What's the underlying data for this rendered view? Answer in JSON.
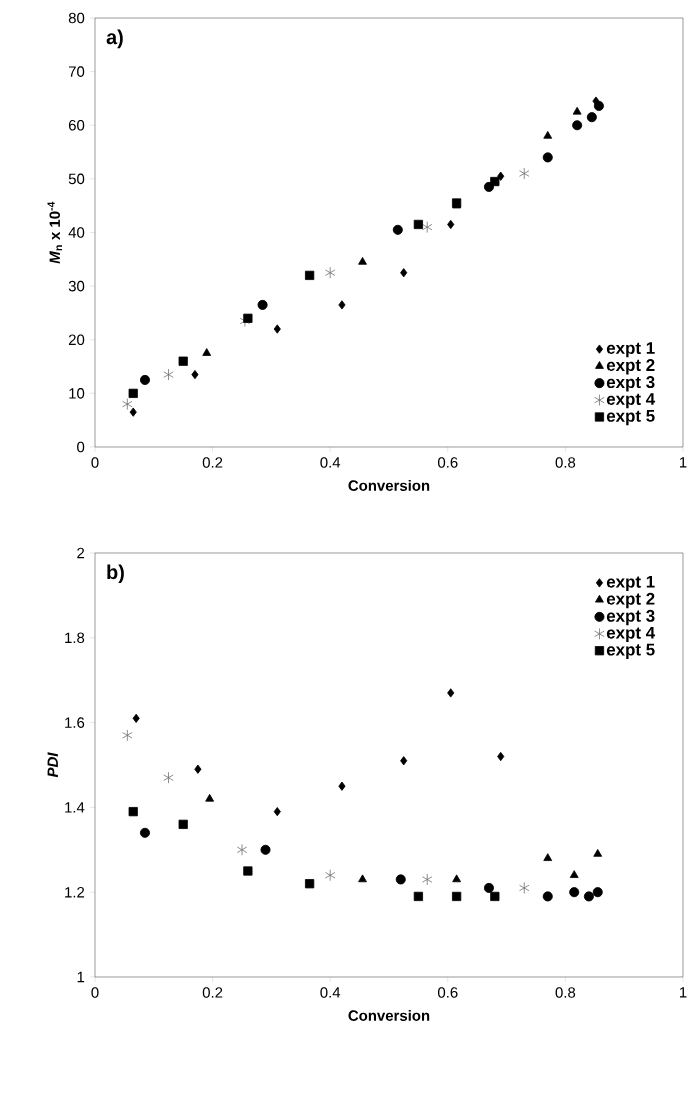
{
  "chart_data": [
    {
      "type": "scatter",
      "xlabel": "Conversion",
      "ylabel": "*M*$_{n}$ x 10$^{-4}$",
      "annotations": [
        "a)"
      ],
      "xlim": [
        0,
        1
      ],
      "ylim": [
        0,
        80
      ],
      "xticks": [
        0,
        0.2,
        0.4,
        0.6,
        0.8,
        1
      ],
      "yticks": [
        0,
        10,
        20,
        30,
        40,
        50,
        60,
        70,
        80
      ],
      "grid": false,
      "legend": "bottom right",
      "series": [
        {
          "name": "expt 1",
          "color": "#000000",
          "marker": "diamond",
          "x": [
            0.065,
            0.17,
            0.31,
            0.42,
            0.525,
            0.605,
            0.69,
            0.852
          ],
          "values": [
            6.5,
            13.5,
            22,
            26.5,
            32.5,
            41.5,
            50.5,
            64.5
          ]
        },
        {
          "name": "expt 2",
          "color": "#000000",
          "marker": "triangle",
          "x": [
            0.19,
            0.455,
            0.615,
            0.77,
            0.82
          ],
          "values": [
            17.5,
            34.5,
            45,
            58,
            62.5
          ]
        },
        {
          "name": "expt 3",
          "color": "#000000",
          "marker": "circle",
          "x": [
            0.085,
            0.285,
            0.515,
            0.67,
            0.77,
            0.82,
            0.845,
            0.857
          ],
          "values": [
            12.5,
            26.5,
            40.5,
            48.5,
            54,
            60,
            61.5,
            63.6
          ]
        },
        {
          "name": "expt 4",
          "color": "#707070",
          "marker": "cross",
          "x": [
            0.055,
            0.125,
            0.255,
            0.4,
            0.565,
            0.73
          ],
          "values": [
            8,
            13.5,
            23.5,
            32.5,
            41,
            51
          ]
        },
        {
          "name": "expt 5",
          "color": "#000000",
          "marker": "square",
          "x": [
            0.065,
            0.15,
            0.26,
            0.365,
            0.55,
            0.615,
            0.68
          ],
          "values": [
            10,
            16,
            24,
            32,
            41.5,
            45.5,
            49.5
          ]
        }
      ]
    },
    {
      "type": "scatter",
      "xlabel": "Conversion",
      "ylabel": "PDI",
      "annotations": [
        "b)"
      ],
      "xlim": [
        0,
        1
      ],
      "ylim": [
        1,
        2
      ],
      "xticks": [
        0,
        0.2,
        0.4,
        0.6,
        0.8,
        1
      ],
      "yticks": [
        1,
        1.2,
        1.4,
        1.6,
        1.8,
        2
      ],
      "grid": false,
      "legend": "top right",
      "series": [
        {
          "name": "expt 1",
          "color": "#000000",
          "marker": "diamond",
          "x": [
            0.07,
            0.175,
            0.31,
            0.42,
            0.525,
            0.605,
            0.69
          ],
          "values": [
            1.61,
            1.49,
            1.39,
            1.45,
            1.51,
            1.67,
            1.52
          ]
        },
        {
          "name": "expt 2",
          "color": "#000000",
          "marker": "triangle",
          "x": [
            0.195,
            0.455,
            0.615,
            0.77,
            0.815,
            0.855
          ],
          "values": [
            1.42,
            1.23,
            1.23,
            1.28,
            1.24,
            1.29
          ]
        },
        {
          "name": "expt 3",
          "color": "#000000",
          "marker": "circle",
          "x": [
            0.085,
            0.29,
            0.52,
            0.67,
            0.77,
            0.815,
            0.84,
            0.855
          ],
          "values": [
            1.34,
            1.3,
            1.23,
            1.21,
            1.19,
            1.2,
            1.19,
            1.2
          ]
        },
        {
          "name": "expt 4",
          "color": "#707070",
          "marker": "cross",
          "x": [
            0.055,
            0.125,
            0.25,
            0.4,
            0.565,
            0.73
          ],
          "values": [
            1.57,
            1.47,
            1.3,
            1.24,
            1.23,
            1.21
          ]
        },
        {
          "name": "expt 5",
          "color": "#000000",
          "marker": "square",
          "x": [
            0.065,
            0.15,
            0.26,
            0.365,
            0.55,
            0.615,
            0.68
          ],
          "values": [
            1.39,
            1.36,
            1.25,
            1.22,
            1.19,
            1.19,
            1.19
          ]
        }
      ]
    }
  ]
}
